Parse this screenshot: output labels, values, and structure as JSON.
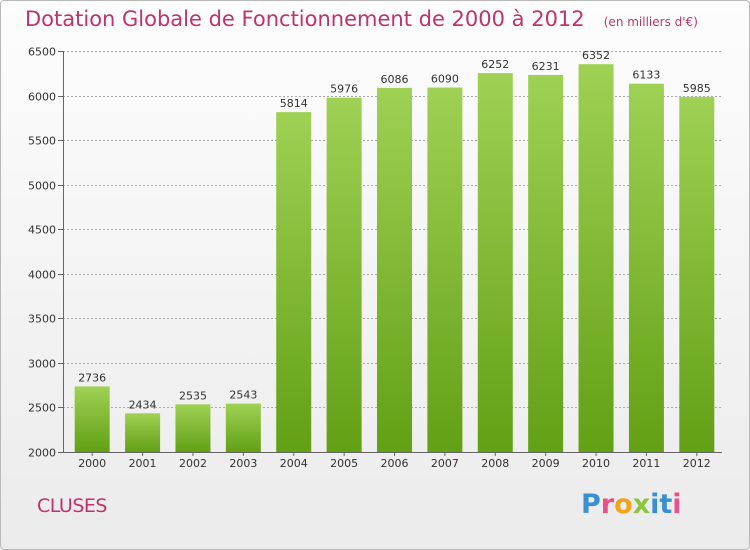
{
  "title": "Dotation Globale de Fonctionnement de 2000 à 2012",
  "unit_note": "(en milliers d'€)",
  "commune": "CLUSES",
  "brand": "Proxiti",
  "colors": {
    "title": "#c0336a",
    "bar_top": "#9fd154",
    "bar_bottom": "#62a015",
    "grid": "#aaaaaa"
  },
  "chart_data": {
    "type": "bar",
    "title": "Dotation Globale de Fonctionnement de 2000 à 2012",
    "xlabel": "",
    "ylabel": "",
    "categories": [
      "2000",
      "2001",
      "2002",
      "2003",
      "2004",
      "2005",
      "2006",
      "2007",
      "2008",
      "2009",
      "2010",
      "2011",
      "2012"
    ],
    "values": [
      2736,
      2434,
      2535,
      2543,
      5814,
      5976,
      6086,
      6090,
      6252,
      6231,
      6352,
      6133,
      5985
    ],
    "ylim": [
      2000,
      6500
    ],
    "yticks": [
      2000,
      2500,
      3000,
      3500,
      4000,
      4500,
      5000,
      5500,
      6000,
      6500
    ],
    "grid": true
  }
}
